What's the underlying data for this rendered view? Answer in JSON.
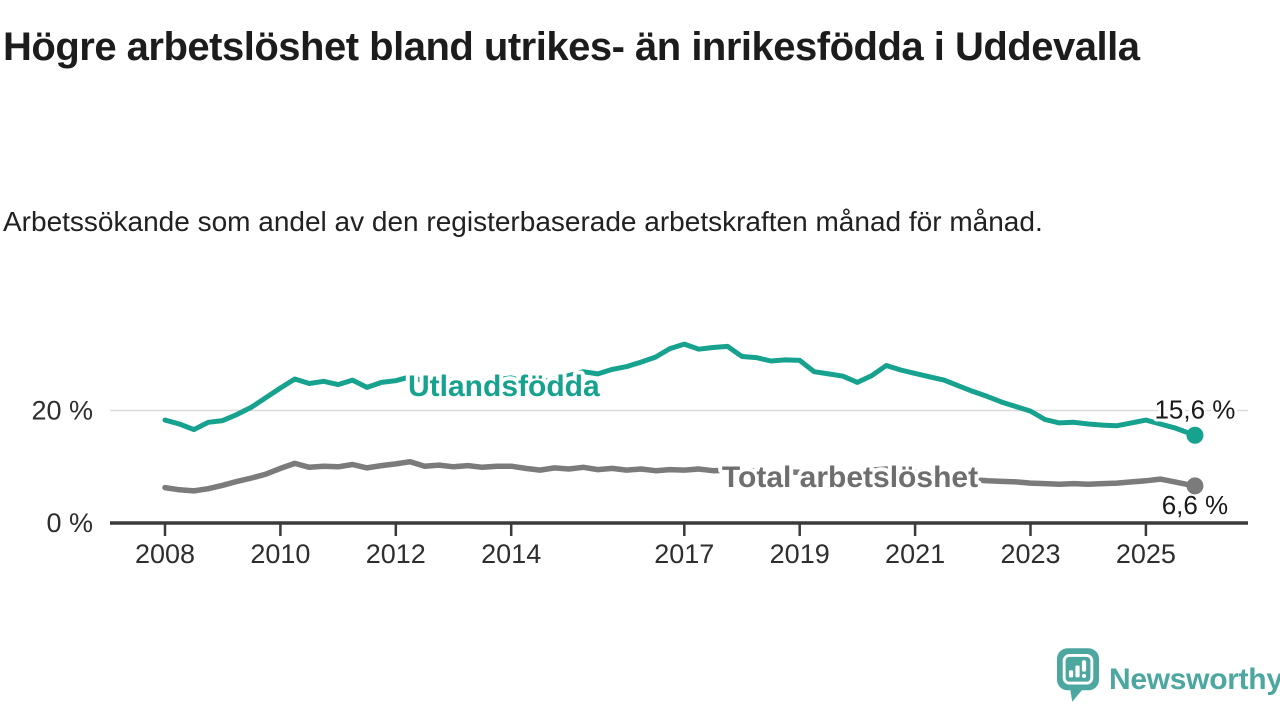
{
  "header": {
    "title": "Högre arbetslöshet bland utrikes- än inrikesfödda i Uddevalla",
    "subtitle": "Arbetssökande som andel av den registerbaserade arbetskraften månad för månad."
  },
  "footer": {
    "brand": "Newsworthy",
    "brand_color": "#4BA7A0",
    "icon": "newsworthy-speech-bubble-bar-chart-icon"
  },
  "chart_data": {
    "type": "line",
    "title": "Högre arbetslöshet bland utrikes- än inrikesfödda i Uddevalla",
    "subtitle": "Arbetssökande som andel av den registerbaserade arbetskraften månad för månad.",
    "unit": "%",
    "legend_position": "inline-labels",
    "grid": "horizontal-20-only",
    "x": {
      "start": 2008,
      "step_years": 0.25,
      "end": 2025.85,
      "range": [
        2007.05,
        2026.75
      ],
      "ticks": [
        2008,
        2010,
        2012,
        2014,
        2017,
        2019,
        2021,
        2023,
        2025
      ]
    },
    "y": {
      "range": [
        0,
        34
      ],
      "ticks": [
        {
          "value": 0,
          "label": "0 %"
        },
        {
          "value": 20,
          "label": "20 %"
        }
      ]
    },
    "axis_color": "#3A3A3A",
    "grid_color": "#D9D9D9",
    "tick_text_color": "#2E2E2E",
    "value_label_color": "#1A1A1A",
    "series": [
      {
        "name": "Utlandsfödda",
        "color": "#16A28E",
        "label_color": "#16A28E",
        "end_value": 15.6,
        "end_label": "15,6 %",
        "values": [
          18.3,
          17.6,
          16.6,
          17.9,
          18.2,
          19.3,
          20.6,
          22.3,
          24.0,
          25.6,
          24.8,
          25.2,
          24.6,
          25.4,
          24.1,
          25.0,
          25.3,
          26.0,
          25.2,
          25.6,
          25.4,
          25.0,
          25.2,
          25.5,
          25.8,
          25.1,
          24.9,
          25.7,
          26.2,
          26.9,
          26.5,
          27.3,
          27.8,
          28.6,
          29.5,
          31.0,
          31.8,
          30.9,
          31.2,
          31.4,
          29.6,
          29.4,
          28.8,
          29.0,
          28.9,
          26.9,
          26.5,
          26.1,
          25.0,
          26.2,
          28.0,
          27.2,
          26.6,
          26.0,
          25.4,
          24.4,
          23.4,
          22.5,
          21.5,
          20.7,
          19.9,
          18.4,
          17.8,
          17.9,
          17.6,
          17.4,
          17.3,
          17.8,
          18.3,
          17.6,
          16.9,
          15.6
        ]
      },
      {
        "name": "Total arbetslöshet",
        "color": "#7B7B7B",
        "label_color": "#6E6E6E",
        "end_value": 6.6,
        "end_label": "6,6 %",
        "values": [
          6.3,
          5.9,
          5.7,
          6.1,
          6.7,
          7.4,
          8.0,
          8.7,
          9.7,
          10.6,
          9.9,
          10.1,
          10.0,
          10.4,
          9.8,
          10.2,
          10.5,
          10.9,
          10.1,
          10.3,
          10.0,
          10.2,
          9.9,
          10.1,
          10.1,
          9.7,
          9.4,
          9.8,
          9.6,
          9.9,
          9.5,
          9.7,
          9.4,
          9.6,
          9.3,
          9.5,
          9.4,
          9.6,
          9.3,
          9.4,
          9.2,
          9.3,
          9.0,
          9.1,
          9.0,
          8.8,
          8.7,
          8.8,
          8.9,
          9.4,
          9.6,
          9.3,
          9.0,
          8.6,
          8.2,
          7.9,
          7.7,
          7.5,
          7.4,
          7.3,
          7.1,
          7.0,
          6.9,
          7.0,
          6.9,
          7.0,
          7.1,
          7.3,
          7.5,
          7.8,
          7.3,
          6.6
        ]
      }
    ]
  }
}
